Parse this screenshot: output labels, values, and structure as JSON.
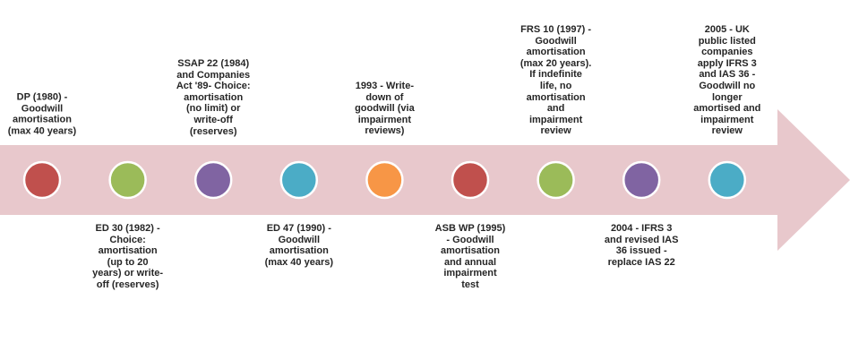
{
  "colors": {
    "arrow": "#e8c8cc",
    "circle_stroke": "#ffffff"
  },
  "events": [
    {
      "text": "DP (1980) -\nGoodwill\namortisation\n(max 40 years)",
      "position": "above",
      "color": "#c0504d"
    },
    {
      "text": "ED 30 (1982) -\nChoice:\namortisation\n(up to 20\nyears) or write-\noff (reserves)",
      "position": "below",
      "color": "#9bbb59"
    },
    {
      "text": "SSAP 22 (1984)\nand Companies\nAct '89- Choice:\namortisation\n(no limit) or\nwrite-off\n(reserves)",
      "position": "above",
      "color": "#8064a2"
    },
    {
      "text": "ED 47 (1990) -\nGoodwill\namortisation\n(max 40 years)",
      "position": "below",
      "color": "#4bacc6"
    },
    {
      "text": "1993 - Write-\ndown of\ngoodwill (via\nimpairment\nreviews)",
      "position": "above",
      "color": "#f79646"
    },
    {
      "text": "ASB WP (1995)\n- Goodwill\namortisation\nand annual\nimpairment\ntest",
      "position": "below",
      "color": "#c0504d"
    },
    {
      "text": "FRS 10 (1997) -\nGoodwill\namortisation\n(max 20 years).\nIf indefinite\nlife, no\namortisation\nand\nimpairment\nreview",
      "position": "above",
      "color": "#9bbb59"
    },
    {
      "text": "2004 - IFRS 3\nand revised IAS\n36 issued -\nreplace IAS 22",
      "position": "below",
      "color": "#8064a2"
    },
    {
      "text": "2005 - UK\npublic listed\ncompanies\napply IFRS 3\nand IAS 36 -\nGoodwill no\nlonger\namortised and\nimpairment\nreview",
      "position": "above",
      "color": "#4bacc6"
    }
  ]
}
